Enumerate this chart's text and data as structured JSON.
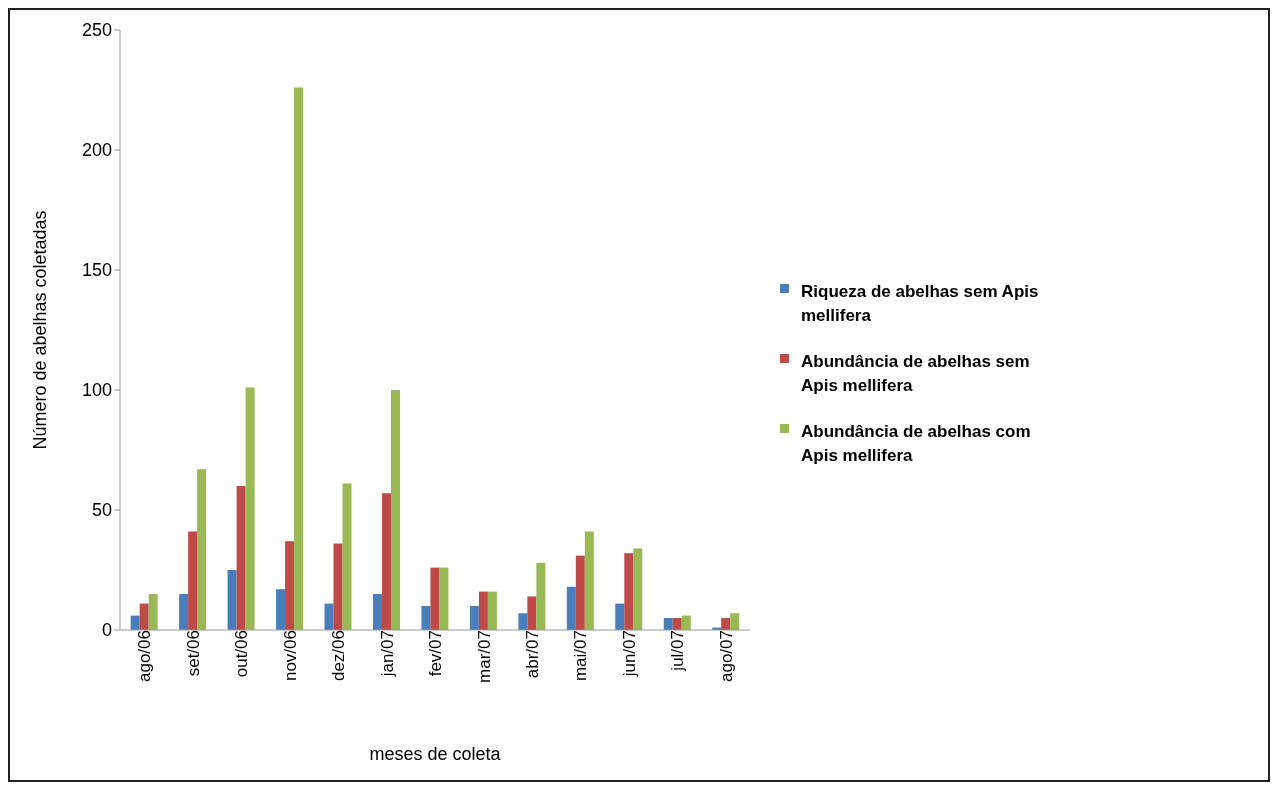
{
  "chart_data": {
    "type": "bar",
    "xlabel": "meses de coleta",
    "ylabel": "Número de abelhas coletadas",
    "categories": [
      "ago/06",
      "set/06",
      "out/06",
      "nov/06",
      "dez/06",
      "jan/07",
      "fev/07",
      "mar/07",
      "abr/07",
      "mai/07",
      "jun/07",
      "jul/07",
      "ago/07"
    ],
    "series": [
      {
        "name": "Riqueza de abelhas sem Apis mellifera",
        "color": "#4a7ebb",
        "values": [
          6,
          15,
          25,
          17,
          11,
          15,
          10,
          10,
          7,
          18,
          11,
          5,
          1
        ]
      },
      {
        "name": "Abundância de abelhas sem Apis mellifera",
        "color": "#be4b48",
        "values": [
          11,
          41,
          60,
          37,
          36,
          57,
          26,
          16,
          14,
          31,
          32,
          5,
          5
        ]
      },
      {
        "name": "Abundância de abelhas com Apis mellifera",
        "color": "#98b954",
        "values": [
          15,
          67,
          101,
          226,
          61,
          100,
          26,
          16,
          28,
          41,
          34,
          6,
          7
        ]
      }
    ],
    "ylim": [
      0,
      250
    ],
    "yticks": [
      0,
      50,
      100,
      150,
      200,
      250
    ],
    "grid": false,
    "legend": "right"
  }
}
